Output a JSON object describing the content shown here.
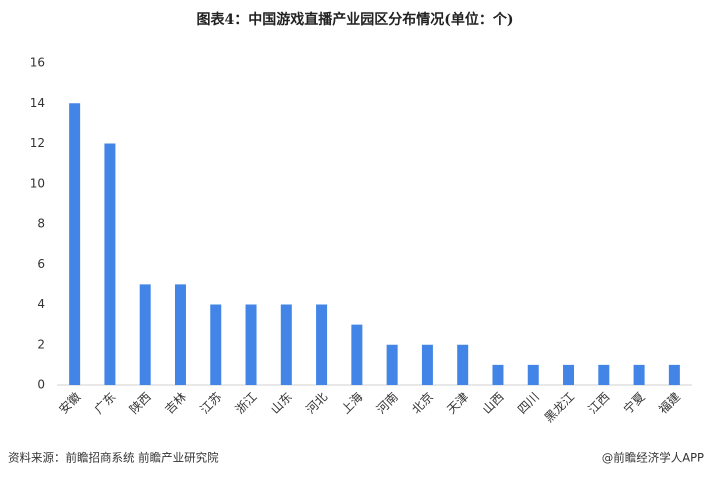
{
  "chart_data": {
    "type": "bar",
    "title": "图表4：中国游戏直播产业园区分布情况(单位：个)",
    "categories": [
      "安徽",
      "广东",
      "陕西",
      "吉林",
      "江苏",
      "浙江",
      "山东",
      "河北",
      "上海",
      "河南",
      "北京",
      "天津",
      "山西",
      "四川",
      "黑龙江",
      "江西",
      "宁夏",
      "福建"
    ],
    "values": [
      14,
      12,
      5,
      5,
      4,
      4,
      4,
      4,
      3,
      2,
      2,
      2,
      1,
      1,
      1,
      1,
      1,
      1
    ],
    "color": "#4285e6",
    "ylim": [
      0,
      16
    ],
    "yticks": [
      0,
      2,
      4,
      6,
      8,
      10,
      12,
      14,
      16
    ],
    "grid": false,
    "source": "资料来源：前瞻招商系统 前瞻产业研究院",
    "credit": "@前瞻经济学人APP"
  }
}
